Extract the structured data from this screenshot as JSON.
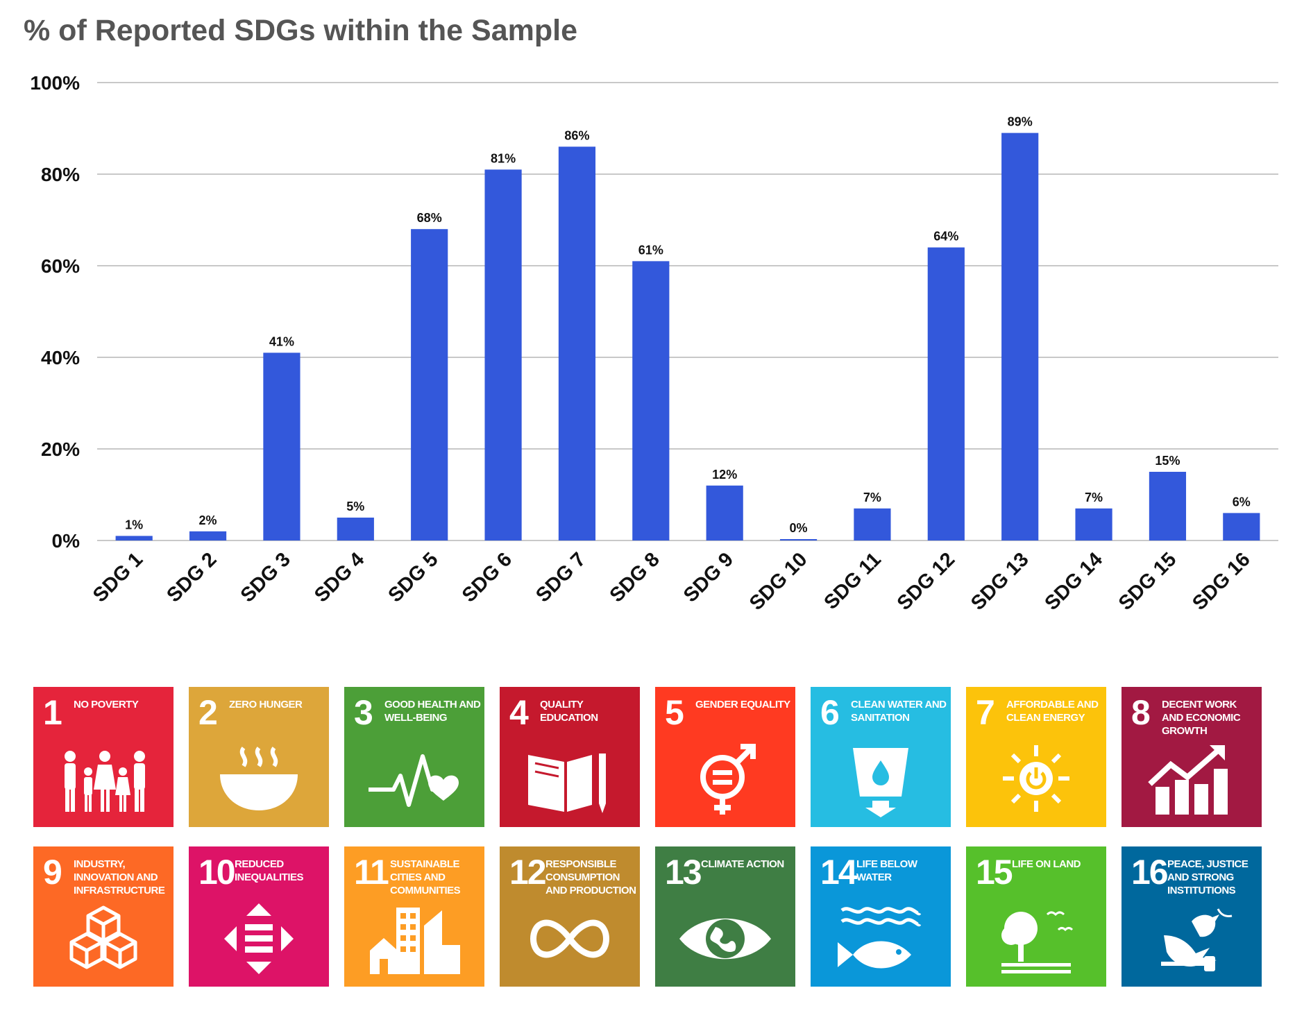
{
  "chart_data": {
    "type": "bar",
    "title": "% of Reported SDGs within the Sample",
    "xlabel": "",
    "ylabel": "",
    "categories": [
      "SDG 1",
      "SDG 2",
      "SDG 3",
      "SDG 4",
      "SDG 5",
      "SDG 6",
      "SDG 7",
      "SDG 8",
      "SDG 9",
      "SDG 10",
      "SDG 11",
      "SDG 12",
      "SDG 13",
      "SDG 14",
      "SDG 15",
      "SDG 16"
    ],
    "values": [
      1,
      2,
      41,
      5,
      68,
      81,
      86,
      61,
      12,
      0,
      7,
      64,
      89,
      7,
      15,
      6
    ],
    "value_labels": [
      "1%",
      "2%",
      "41%",
      "5%",
      "68%",
      "81%",
      "86%",
      "61%",
      "12%",
      "0%",
      "7%",
      "64%",
      "89%",
      "7%",
      "15%",
      "6%"
    ],
    "ylim": [
      0,
      100
    ],
    "yticks": [
      "0%",
      "20%",
      "40%",
      "60%",
      "80%",
      "100%"
    ],
    "grid": true,
    "legend": "none",
    "bar_color": "#3358DB"
  },
  "tiles": [
    {
      "number": "1",
      "title": "No Poverty",
      "color": "#E5243B",
      "icon": "people-family-icon"
    },
    {
      "number": "2",
      "title": "Zero Hunger",
      "color": "#DDA63A",
      "icon": "bowl-icon"
    },
    {
      "number": "3",
      "title": "Good Health and Well-Being",
      "color": "#4C9F38",
      "icon": "heartbeat-icon"
    },
    {
      "number": "4",
      "title": "Quality Education",
      "color": "#C5192D",
      "icon": "book-pencil-icon"
    },
    {
      "number": "5",
      "title": "Gender Equality",
      "color": "#FF3A21",
      "icon": "gender-equality-icon"
    },
    {
      "number": "6",
      "title": "Clean Water and Sanitation",
      "color": "#26BDE2",
      "icon": "water-glass-icon"
    },
    {
      "number": "7",
      "title": "Affordable and Clean Energy",
      "color": "#FCC30B",
      "icon": "sun-power-icon"
    },
    {
      "number": "8",
      "title": "Decent Work and Economic Growth",
      "color": "#A21942",
      "icon": "growth-chart-icon"
    },
    {
      "number": "9",
      "title": "Industry, Innovation and Infrastructure",
      "color": "#FD6925",
      "icon": "cubes-icon"
    },
    {
      "number": "10",
      "title": "Reduced Inequalities",
      "color": "#DD1367",
      "icon": "equality-arrows-icon"
    },
    {
      "number": "11",
      "title": "Sustainable Cities and Communities",
      "color": "#FD9D24",
      "icon": "city-buildings-icon"
    },
    {
      "number": "12",
      "title": "Responsible Consumption and Production",
      "color": "#BF8B2E",
      "icon": "infinity-icon"
    },
    {
      "number": "13",
      "title": "Climate Action",
      "color": "#3F7E44",
      "icon": "eye-globe-icon"
    },
    {
      "number": "14",
      "title": "Life Below Water",
      "color": "#0A97D9",
      "icon": "fish-waves-icon"
    },
    {
      "number": "15",
      "title": "Life on Land",
      "color": "#56C02B",
      "icon": "tree-birds-icon"
    },
    {
      "number": "16",
      "title": "Peace, Justice and Strong Institutions",
      "color": "#00689D",
      "icon": "dove-gavel-icon"
    }
  ]
}
